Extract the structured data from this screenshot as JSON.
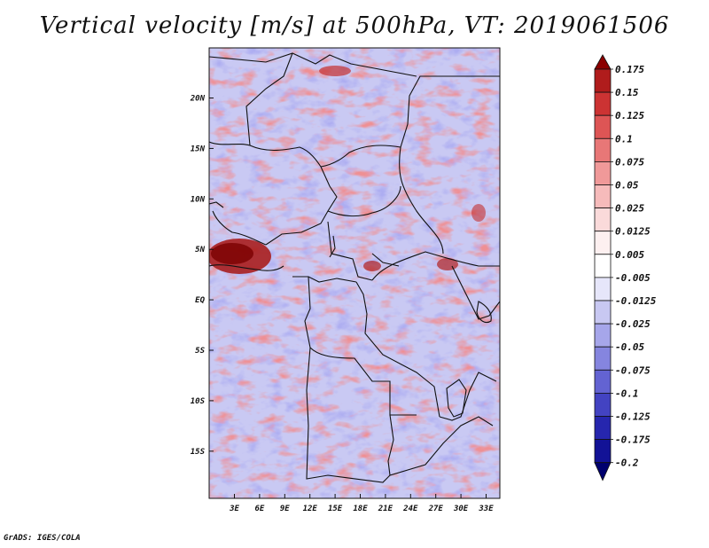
{
  "title": "Vertical velocity [m/s] at 500hPa, VT: 2019061506",
  "credit": "GrADS: IGES/COLA",
  "map": {
    "lon_labels": [
      "3E",
      "6E",
      "9E",
      "12E",
      "15E",
      "18E",
      "21E",
      "24E",
      "27E",
      "30E",
      "33E"
    ],
    "lat_labels": [
      "20N",
      "15N",
      "10N",
      "5N",
      "EQ",
      "5S",
      "10S",
      "15S"
    ]
  },
  "colorbar": {
    "labels": [
      "0.175",
      "0.15",
      "0.125",
      "0.1",
      "0.075",
      "0.05",
      "0.025",
      "0.0125",
      "0.005",
      "-0.005",
      "-0.0125",
      "-0.025",
      "-0.05",
      "-0.075",
      "-0.1",
      "-0.125",
      "-0.175",
      "-0.2"
    ],
    "colors": [
      "#8b0000",
      "#b01c1c",
      "#cc3333",
      "#dd5555",
      "#e87777",
      "#f09999",
      "#f6bbbb",
      "#fadada",
      "#fdf0f0",
      "#ffffff",
      "#e6e6fa",
      "#c8c8f2",
      "#a6a6ea",
      "#8585df",
      "#6363d2",
      "#4343c2",
      "#2626ae",
      "#121296",
      "#00006e"
    ]
  }
}
